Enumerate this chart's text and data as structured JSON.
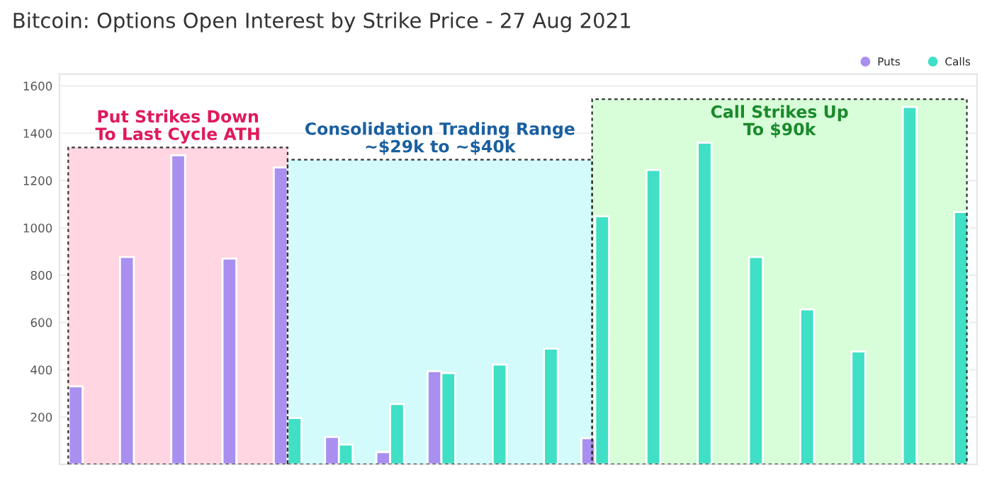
{
  "chart_data": {
    "type": "bar",
    "title": "Bitcoin: Options Open Interest by Strike Price - 27 Aug 2021",
    "categories": [
      null,
      null,
      null,
      null,
      null,
      null,
      null,
      null,
      null,
      null,
      null,
      null,
      null,
      null,
      null,
      null,
      null,
      null
    ],
    "series": [
      {
        "name": "Puts",
        "color": "#a98ff0",
        "values": [
          330,
          877,
          1307,
          870,
          1255,
          116,
          52,
          394,
          null,
          null,
          111,
          null,
          null,
          null,
          null,
          null,
          null,
          null
        ]
      },
      {
        "name": "Calls",
        "color": "#3fe0c5",
        "values": [
          null,
          null,
          null,
          null,
          196,
          84,
          255,
          386,
          422,
          489,
          1049,
          1245,
          1360,
          877,
          655,
          477,
          1511,
          1067
        ]
      }
    ],
    "ylim": [
      0,
      1650
    ],
    "yticks": [
      200,
      400,
      600,
      800,
      1000,
      1200,
      1400,
      1600
    ],
    "grid": "y",
    "legend": "top right",
    "annotations": [
      "Put Strikes Down\nTo Last Cycle ATH",
      "Consolidation Trading Range\n~$29k to ~$40k",
      "Call Strikes Up\nTo $90k"
    ]
  }
}
